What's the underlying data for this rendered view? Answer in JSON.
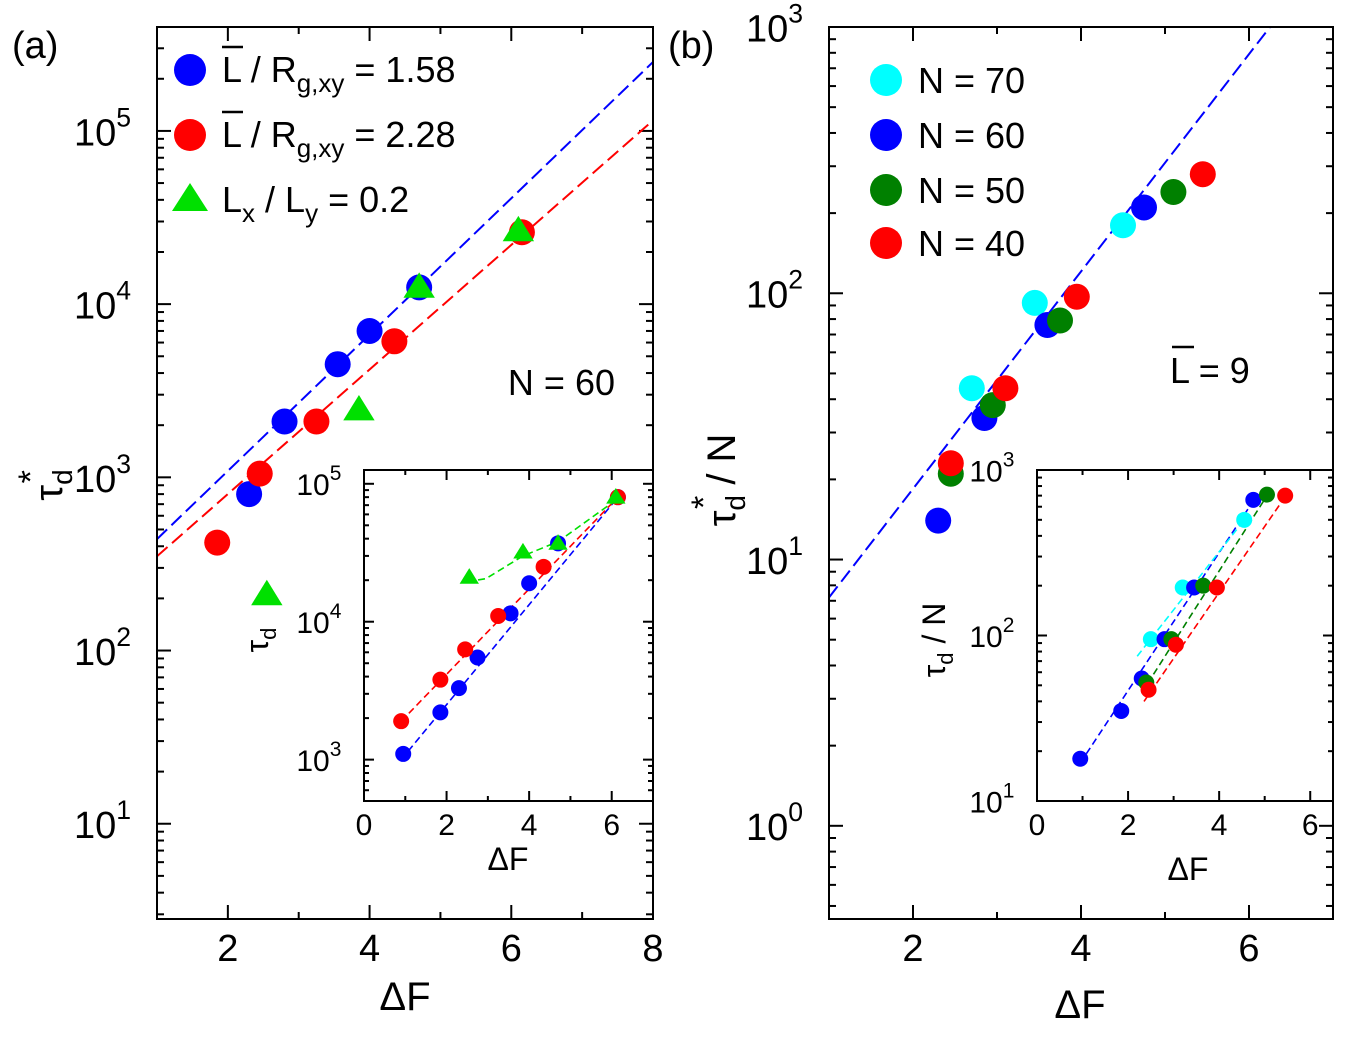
{
  "figure": {
    "panel_a_label": "(a)",
    "panel_b_label": "(b)"
  },
  "colors": {
    "blue": "#0000ff",
    "red": "#ff0000",
    "green": "#00e000",
    "cyan": "#00ffff",
    "darkgreen": "#008000"
  },
  "chart_data": [
    {
      "id": "a_main",
      "type": "scatter",
      "yscale": "log",
      "xlabel": "ΔF",
      "ylabel": "τd*",
      "xlim": [
        1,
        8
      ],
      "ylim_log10": [
        0.45,
        5.6
      ],
      "xticks": [
        2,
        4,
        6,
        8
      ],
      "yticks_exp": [
        1,
        2,
        3,
        4,
        5
      ],
      "annotation": "N = 60",
      "legend": [
        {
          "sym": "circle",
          "color": "blue",
          "pre": "L",
          "mid": " / R",
          "sub": "g,xy",
          "post": " = 1.58"
        },
        {
          "sym": "circle",
          "color": "red",
          "pre": "L",
          "mid": " / R",
          "sub": "g,xy",
          "post": " = 2.28"
        },
        {
          "sym": "triangle",
          "color": "green",
          "pre": "L",
          "sub1": "x",
          "mid": " / L",
          "sub": "y",
          "post": " = 0.2"
        }
      ],
      "series": [
        {
          "name": "L / Rg,xy = 1.58",
          "color": "blue",
          "marker": "circle",
          "x": [
            2.3,
            2.8,
            3.55,
            4.0,
            4.7
          ],
          "y": [
            800,
            2100,
            4500,
            7000,
            12500
          ]
        },
        {
          "name": "L / Rg,xy = 2.28",
          "color": "red",
          "marker": "circle",
          "x": [
            1.85,
            2.45,
            3.25,
            4.35,
            6.15
          ],
          "y": [
            420,
            1050,
            2100,
            6100,
            26000
          ]
        },
        {
          "name": "Lx / Ly = 0.2",
          "color": "green",
          "marker": "triangle",
          "x": [
            2.55,
            3.85,
            4.7,
            6.1
          ],
          "y": [
            210,
            2450,
            12500,
            26500
          ]
        }
      ],
      "fits": [
        {
          "color": "blue",
          "x": [
            1.0,
            8.0
          ],
          "y": [
            440,
            250000
          ]
        },
        {
          "color": "red",
          "x": [
            1.0,
            8.0
          ],
          "y": [
            350,
            115000
          ]
        }
      ]
    },
    {
      "id": "a_inset",
      "type": "scatter",
      "yscale": "log",
      "xlabel": "ΔF",
      "ylabel": "τd",
      "xlim": [
        0,
        7
      ],
      "ylim_log10": [
        2.7,
        5.1
      ],
      "xticks": [
        0,
        2,
        4,
        6
      ],
      "yticks_exp": [
        3,
        4,
        5
      ],
      "series": [
        {
          "name": "blue",
          "color": "blue",
          "marker": "circle",
          "x": [
            0.95,
            1.85,
            2.3,
            2.75,
            3.55,
            4.0,
            4.7,
            6.15
          ],
          "y": [
            1100,
            2200,
            3300,
            5500,
            11500,
            19000,
            37000,
            80000
          ]
        },
        {
          "name": "red",
          "color": "red",
          "marker": "circle",
          "x": [
            0.9,
            1.85,
            2.45,
            3.25,
            4.35,
            6.15
          ],
          "y": [
            1900,
            3800,
            6300,
            11000,
            25000,
            80000
          ]
        },
        {
          "name": "green",
          "color": "green",
          "marker": "triangle",
          "x": [
            2.55,
            3.85,
            4.7,
            6.1
          ],
          "y": [
            21000,
            32000,
            37000,
            80000
          ]
        }
      ],
      "fits": [
        {
          "color": "blue",
          "x": [
            0.9,
            6.15
          ],
          "y": [
            1000,
            80000
          ]
        },
        {
          "color": "red",
          "x": [
            0.9,
            6.15
          ],
          "y": [
            1900,
            80000
          ]
        },
        {
          "color": "green",
          "x": [
            2.5,
            2.95,
            3.85,
            4.7,
            6.15
          ],
          "y": [
            19500,
            20500,
            30000,
            38000,
            78000
          ]
        }
      ]
    },
    {
      "id": "b_main",
      "type": "scatter",
      "yscale": "log",
      "xlabel": "ΔF",
      "ylabel": "τd* / N",
      "xlim": [
        1,
        7
      ],
      "ylim_log10": [
        -0.35,
        3.0
      ],
      "xticks": [
        2,
        4,
        6
      ],
      "yticks_exp": [
        0,
        1,
        2,
        3
      ],
      "annotation": "L = 9",
      "legend": [
        {
          "sym": "circle",
          "color": "cyan",
          "label": "N = 70"
        },
        {
          "sym": "circle",
          "color": "blue",
          "label": "N = 60"
        },
        {
          "sym": "circle",
          "color": "darkgreen",
          "label": "N = 50"
        },
        {
          "sym": "circle",
          "color": "red",
          "label": "N = 40"
        }
      ],
      "series": [
        {
          "name": "N = 70",
          "color": "cyan",
          "marker": "circle",
          "x": [
            2.7,
            3.45,
            4.5
          ],
          "y": [
            44,
            92,
            180
          ]
        },
        {
          "name": "N = 60",
          "color": "blue",
          "marker": "circle",
          "x": [
            2.3,
            2.85,
            3.6,
            4.75
          ],
          "y": [
            14,
            34,
            76,
            210
          ]
        },
        {
          "name": "N = 50",
          "color": "darkgreen",
          "marker": "circle",
          "x": [
            2.45,
            2.95,
            3.75,
            5.1
          ],
          "y": [
            21,
            38,
            79,
            240
          ]
        },
        {
          "name": "N = 40",
          "color": "red",
          "marker": "circle",
          "x": [
            2.45,
            3.1,
            3.95,
            5.45
          ],
          "y": [
            23,
            44,
            97,
            280
          ]
        }
      ],
      "fits": [
        {
          "color": "blue",
          "x": [
            1.0,
            6.25
          ],
          "y": [
            7.2,
            1000
          ]
        }
      ]
    },
    {
      "id": "b_inset",
      "type": "scatter",
      "yscale": "log",
      "xlabel": "ΔF",
      "ylabel": "τd / N",
      "xlim": [
        0,
        6.5
      ],
      "ylim_log10": [
        1.0,
        3.0
      ],
      "xticks": [
        0,
        2,
        4,
        6
      ],
      "yticks_exp": [
        1,
        2,
        3
      ],
      "series": [
        {
          "name": "N = 70",
          "color": "cyan",
          "marker": "circle",
          "x": [
            2.5,
            3.2,
            4.55
          ],
          "y": [
            95,
            195,
            500
          ]
        },
        {
          "name": "N = 60",
          "color": "blue",
          "marker": "circle",
          "x": [
            0.95,
            1.85,
            2.3,
            2.8,
            3.45,
            4.75
          ],
          "y": [
            18,
            35,
            55,
            95,
            195,
            660
          ]
        },
        {
          "name": "N = 50",
          "color": "darkgreen",
          "marker": "circle",
          "x": [
            2.4,
            2.95,
            3.65,
            5.05
          ],
          "y": [
            52,
            95,
            200,
            710
          ]
        },
        {
          "name": "N = 40",
          "color": "red",
          "marker": "circle",
          "x": [
            2.45,
            3.05,
            3.95,
            5.45
          ],
          "y": [
            47,
            88,
            195,
            700
          ]
        }
      ],
      "fits": [
        {
          "color": "blue",
          "x": [
            0.95,
            4.75
          ],
          "y": [
            17,
            650
          ]
        },
        {
          "color": "cyan",
          "x": [
            2.2,
            4.6
          ],
          "y": [
            75,
            520
          ]
        },
        {
          "color": "darkgreen",
          "x": [
            2.3,
            5.05
          ],
          "y": [
            45,
            700
          ]
        },
        {
          "color": "red",
          "x": [
            2.35,
            5.45
          ],
          "y": [
            40,
            690
          ]
        }
      ]
    }
  ]
}
